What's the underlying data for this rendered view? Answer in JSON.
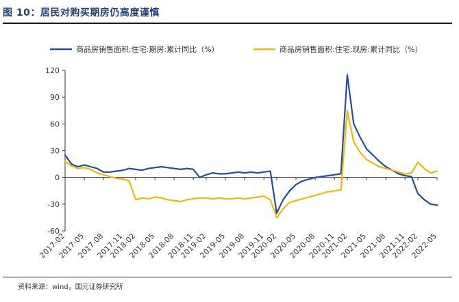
{
  "header": {
    "title": "图 10：居民对购买期房仍高度谨慎"
  },
  "footer": {
    "source": "资料来源：wind，国元证券研究所"
  },
  "chart_data": {
    "type": "line",
    "title": "图 10：居民对购买期房仍高度谨慎",
    "xlabel": "",
    "ylabel": "",
    "ylim": [
      -60,
      120
    ],
    "yticks": [
      -60,
      -30,
      0,
      30,
      60,
      90,
      120
    ],
    "x": [
      "2017-02",
      "2017-03",
      "2017-04",
      "2017-05",
      "2017-06",
      "2017-07",
      "2017-08",
      "2017-09",
      "2017-10",
      "2017-11",
      "2017-12",
      "2018-02",
      "2018-03",
      "2018-04",
      "2018-05",
      "2018-06",
      "2018-07",
      "2018-08",
      "2018-09",
      "2018-10",
      "2018-11",
      "2018-12",
      "2019-02",
      "2019-03",
      "2019-04",
      "2019-05",
      "2019-06",
      "2019-07",
      "2019-08",
      "2019-09",
      "2019-10",
      "2019-11",
      "2019-12",
      "2020-02",
      "2020-03",
      "2020-04",
      "2020-05",
      "2020-06",
      "2020-07",
      "2020-08",
      "2020-09",
      "2020-10",
      "2020-11",
      "2020-12",
      "2021-02",
      "2021-03",
      "2021-04",
      "2021-05",
      "2021-06",
      "2021-07",
      "2021-08",
      "2021-09",
      "2021-10",
      "2021-11",
      "2021-12",
      "2022-02",
      "2022-03",
      "2022-04",
      "2022-05"
    ],
    "xticklabels": [
      "2017-02",
      "2017-05",
      "2017-08",
      "2017-11",
      "2018-02",
      "2018-05",
      "2018-08",
      "2018-11",
      "2019-02",
      "2019-05",
      "2019-08",
      "2019-11",
      "2020-02",
      "2020-05",
      "2020-08",
      "2020-11",
      "2021-02",
      "2021-05",
      "2021-08",
      "2021-11",
      "2022-02",
      "2022-05"
    ],
    "legend_position": "top",
    "series": [
      {
        "name": "商品房销售面积:住宅:期房:累计同比（%）",
        "color": "#1f4e9e",
        "values": [
          25,
          15,
          12,
          14,
          12,
          10,
          6,
          6,
          7,
          8,
          10,
          9,
          8,
          10,
          11,
          12,
          11,
          10,
          9,
          10,
          9,
          0,
          3,
          5,
          4,
          4,
          5,
          6,
          5,
          6,
          5,
          6,
          7,
          -40,
          -25,
          -15,
          -8,
          -4,
          -2,
          0,
          1,
          2,
          3,
          4,
          115,
          60,
          45,
          32,
          25,
          18,
          12,
          8,
          4,
          2,
          1,
          -18,
          -25,
          -30,
          -31
        ]
      },
      {
        "name": "商品房销售面积:住宅:现房:累计同比（%）",
        "color": "#f5b700",
        "values": [
          18,
          13,
          10,
          11,
          9,
          5,
          3,
          1,
          -1,
          -2,
          -4,
          -25,
          -23,
          -24,
          -22,
          -23,
          -25,
          -26,
          -27,
          -25,
          -24,
          -23,
          -23,
          -24,
          -23,
          -24,
          -24,
          -23,
          -24,
          -23,
          -22,
          -21,
          -25,
          -45,
          -35,
          -28,
          -26,
          -24,
          -22,
          -20,
          -18,
          -16,
          -15,
          -14,
          75,
          40,
          28,
          20,
          16,
          12,
          10,
          8,
          6,
          4,
          5,
          17,
          10,
          5,
          7
        ]
      }
    ]
  }
}
